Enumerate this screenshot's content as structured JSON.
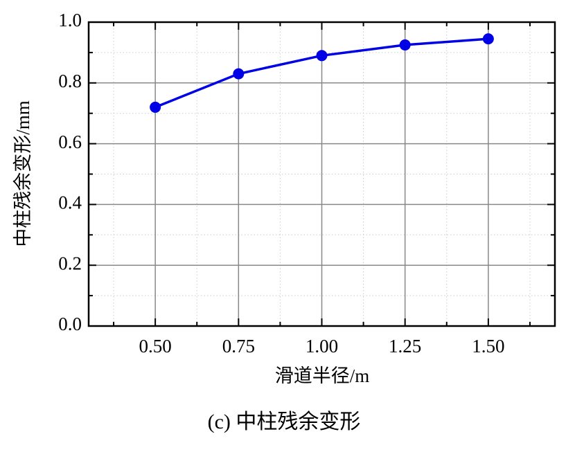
{
  "chart_data": {
    "type": "line",
    "caption": "(c) 中柱残余变形",
    "x_label": "滑道半径/m",
    "y_label": "中柱残余变形/mm",
    "x": [
      0.5,
      0.75,
      1.0,
      1.25,
      1.5
    ],
    "series": [
      {
        "name": "中柱残余变形",
        "color": "#0000e6",
        "values": [
          0.72,
          0.83,
          0.89,
          0.925,
          0.945
        ]
      }
    ],
    "xlim": [
      0.3,
      1.7
    ],
    "xticks": [
      {
        "value": 0.5,
        "label": "0.50"
      },
      {
        "value": 0.75,
        "label": "0.75"
      },
      {
        "value": 1.0,
        "label": "1.00"
      },
      {
        "value": 1.25,
        "label": "1.25"
      },
      {
        "value": 1.5,
        "label": "1.50"
      }
    ],
    "ylim": [
      0,
      1
    ],
    "yticks": [
      {
        "value": 0,
        "label": "0.0"
      },
      0.2,
      0.4,
      0.6,
      0.8,
      {
        "value": 1,
        "label": "1.0"
      }
    ],
    "grid": true
  }
}
